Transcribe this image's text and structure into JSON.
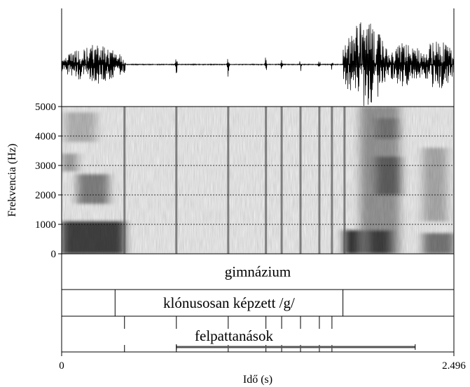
{
  "chart_data": {
    "type": "heatmap",
    "title": "",
    "xlabel": "Idő (s)",
    "ylabel": "Frekvencia (Hz)",
    "xlim": [
      0,
      2.496
    ],
    "ylim": [
      0,
      5000
    ],
    "x_ticks": [
      {
        "value": 0,
        "label": "0"
      },
      {
        "value": 2.496,
        "label": "2.496"
      }
    ],
    "y_ticks": [
      {
        "value": 0,
        "label": "0"
      },
      {
        "value": 1000,
        "label": "1000"
      },
      {
        "value": 2000,
        "label": "2000"
      },
      {
        "value": 3000,
        "label": "3000"
      },
      {
        "value": 4000,
        "label": "4000"
      },
      {
        "value": 5000,
        "label": "5000"
      }
    ],
    "grid": true,
    "waveform": {
      "segments": [
        {
          "start": 0.0,
          "end": 0.4,
          "amplitude": 0.45
        },
        {
          "start": 1.79,
          "end": 2.07,
          "amplitude": 1.0
        },
        {
          "start": 2.07,
          "end": 2.3,
          "amplitude": 0.55
        },
        {
          "start": 2.3,
          "end": 2.496,
          "amplitude": 0.6
        }
      ],
      "clicks": [
        {
          "time": 0.4,
          "amplitude": 0.35
        },
        {
          "time": 0.73,
          "amplitude": 0.3
        },
        {
          "time": 1.06,
          "amplitude": 0.35
        },
        {
          "time": 1.3,
          "amplitude": 0.25
        },
        {
          "time": 1.4,
          "amplitude": 0.2
        },
        {
          "time": 1.52,
          "amplitude": 0.2
        },
        {
          "time": 1.64,
          "amplitude": 0.15
        },
        {
          "time": 1.72,
          "amplitude": 0.15
        }
      ]
    },
    "spectrogram": {
      "dark_blocks": [
        {
          "t0": 0.0,
          "t1": 0.4,
          "f0": 0,
          "f1": 1100,
          "intensity": 0.85
        },
        {
          "t0": 0.1,
          "t1": 0.3,
          "f0": 1700,
          "f1": 2700,
          "intensity": 0.55
        },
        {
          "t0": 0.0,
          "t1": 0.1,
          "f0": 2800,
          "f1": 3400,
          "intensity": 0.4
        },
        {
          "t0": 0.02,
          "t1": 0.22,
          "f0": 3800,
          "f1": 4800,
          "intensity": 0.3
        },
        {
          "t0": 1.8,
          "t1": 1.95,
          "f0": 0,
          "f1": 800,
          "intensity": 0.95
        },
        {
          "t0": 1.9,
          "t1": 2.15,
          "f0": 0,
          "f1": 5000,
          "intensity": 0.45
        },
        {
          "t0": 1.95,
          "t1": 2.1,
          "f0": 0,
          "f1": 800,
          "intensity": 0.8
        },
        {
          "t0": 2.0,
          "t1": 2.16,
          "f0": 2000,
          "f1": 3300,
          "intensity": 0.65
        },
        {
          "t0": 2.0,
          "t1": 2.15,
          "f0": 3900,
          "f1": 4600,
          "intensity": 0.55
        },
        {
          "t0": 2.3,
          "t1": 2.496,
          "f0": 0,
          "f1": 700,
          "intensity": 0.6
        },
        {
          "t0": 2.3,
          "t1": 2.45,
          "f0": 1100,
          "f1": 3600,
          "intensity": 0.35
        }
      ],
      "click_lines": [
        0.4,
        0.73,
        1.06,
        1.3,
        1.4,
        1.52,
        1.64,
        1.72,
        1.8
      ]
    },
    "annotation_tiers": [
      {
        "intervals": [
          {
            "start": 0,
            "end": 2.496,
            "text": "gimnázium"
          }
        ]
      },
      {
        "intervals": [
          {
            "start": 0,
            "end": 0.34,
            "text": ""
          },
          {
            "start": 0.34,
            "end": 1.79,
            "text": "klónusosan képzett /g/"
          },
          {
            "start": 1.79,
            "end": 2.496,
            "text": ""
          }
        ]
      },
      {
        "label": "felpattanások",
        "points": [
          0.4,
          0.73,
          1.06,
          1.3,
          1.4,
          1.52,
          1.64,
          1.72
        ],
        "range": {
          "start": 0.73,
          "end": 2.25
        }
      }
    ]
  }
}
